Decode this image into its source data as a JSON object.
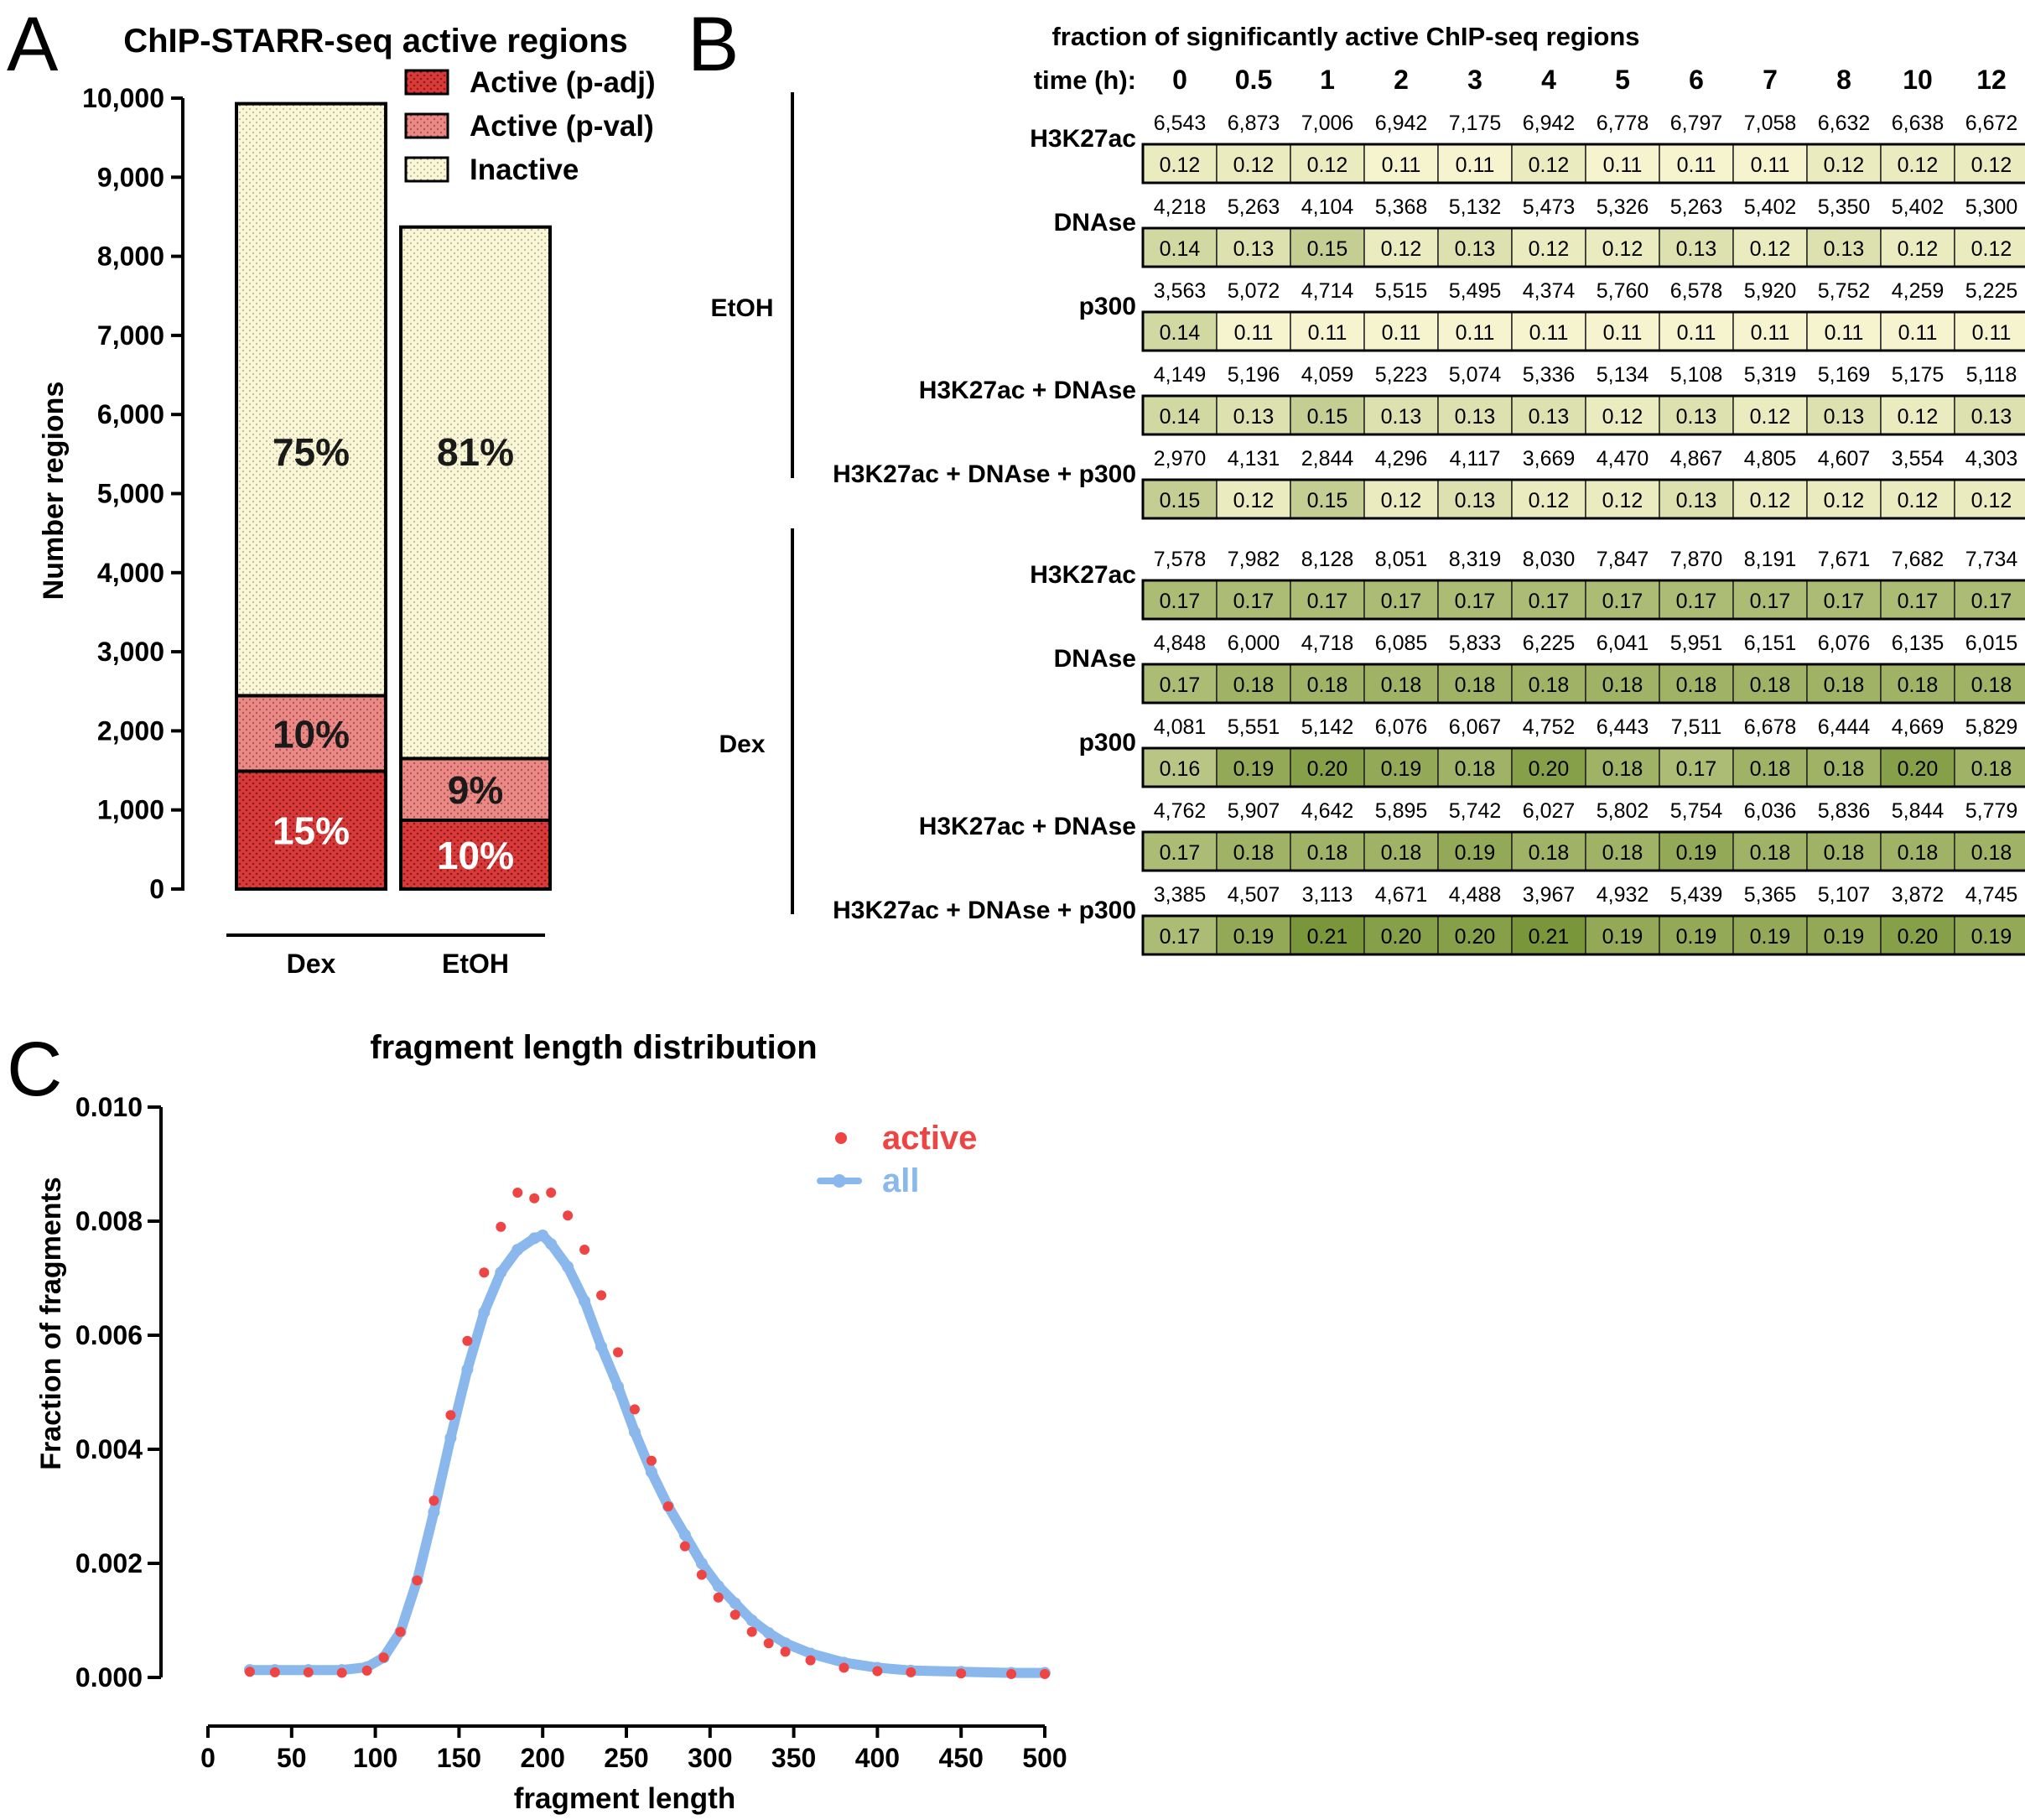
{
  "panel_letters": {
    "a": "A",
    "b": "B",
    "c": "C"
  },
  "chart_data": [
    {
      "type": "bar",
      "stacked": true,
      "title": "ChIP-STARR-seq active regions",
      "xlabel": "",
      "ylabel": "Number regions",
      "ylim": [
        0,
        10000
      ],
      "yticks": [
        "0",
        "1,000",
        "2,000",
        "3,000",
        "4,000",
        "5,000",
        "6,000",
        "7,000",
        "8,000",
        "9,000",
        "10,000"
      ],
      "categories": [
        "Dex",
        "EtOH"
      ],
      "series": [
        {
          "name": "Active (p-adj)",
          "values": [
            1490,
            870
          ],
          "labels": [
            "15%",
            "10%"
          ],
          "color": "#d93a3a"
        },
        {
          "name": "Active (p-val)",
          "values": [
            955,
            780
          ],
          "labels": [
            "10%",
            "9%"
          ],
          "color": "#e98a86"
        },
        {
          "name": "Inactive",
          "values": [
            7485,
            6720
          ],
          "labels": [
            "75%",
            "81%"
          ],
          "color": "#f8f6d6"
        }
      ],
      "legend_position": "top-right"
    },
    {
      "type": "table",
      "title": "fraction of significantly active ChIP-seq regions",
      "time_label": "time (h):",
      "times": [
        "0",
        "0.5",
        "1",
        "2",
        "3",
        "4",
        "5",
        "6",
        "7",
        "8",
        "10",
        "12"
      ],
      "groups": [
        {
          "name": "EtOH",
          "rows": [
            {
              "label": "H3K27ac",
              "counts": [
                "6,543",
                "6,873",
                "7,006",
                "6,942",
                "7,175",
                "6,942",
                "6,778",
                "6,797",
                "7,058",
                "6,632",
                "6,638",
                "6,672"
              ],
              "fractions": [
                "0.12",
                "0.12",
                "0.12",
                "0.11",
                "0.11",
                "0.12",
                "0.11",
                "0.11",
                "0.11",
                "0.12",
                "0.12",
                "0.12"
              ]
            },
            {
              "label": "DNAse",
              "counts": [
                "4,218",
                "5,263",
                "4,104",
                "5,368",
                "5,132",
                "5,473",
                "5,326",
                "5,263",
                "5,402",
                "5,350",
                "5,402",
                "5,300"
              ],
              "fractions": [
                "0.14",
                "0.13",
                "0.15",
                "0.12",
                "0.13",
                "0.12",
                "0.12",
                "0.13",
                "0.12",
                "0.13",
                "0.12",
                "0.12"
              ]
            },
            {
              "label": "p300",
              "counts": [
                "3,563",
                "5,072",
                "4,714",
                "5,515",
                "5,495",
                "4,374",
                "5,760",
                "6,578",
                "5,920",
                "5,752",
                "4,259",
                "5,225"
              ],
              "fractions": [
                "0.14",
                "0.11",
                "0.11",
                "0.11",
                "0.11",
                "0.11",
                "0.11",
                "0.11",
                "0.11",
                "0.11",
                "0.11",
                "0.11"
              ]
            },
            {
              "label": "H3K27ac + DNAse",
              "counts": [
                "4,149",
                "5,196",
                "4,059",
                "5,223",
                "5,074",
                "5,336",
                "5,134",
                "5,108",
                "5,319",
                "5,169",
                "5,175",
                "5,118"
              ],
              "fractions": [
                "0.14",
                "0.13",
                "0.15",
                "0.13",
                "0.13",
                "0.13",
                "0.12",
                "0.13",
                "0.12",
                "0.13",
                "0.12",
                "0.13"
              ]
            },
            {
              "label": "H3K27ac + DNAse + p300",
              "counts": [
                "2,970",
                "4,131",
                "2,844",
                "4,296",
                "4,117",
                "3,669",
                "4,470",
                "4,867",
                "4,805",
                "4,607",
                "3,554",
                "4,303"
              ],
              "fractions": [
                "0.15",
                "0.12",
                "0.15",
                "0.12",
                "0.13",
                "0.12",
                "0.12",
                "0.13",
                "0.12",
                "0.12",
                "0.12",
                "0.12"
              ]
            }
          ]
        },
        {
          "name": "Dex",
          "rows": [
            {
              "label": "H3K27ac",
              "counts": [
                "7,578",
                "7,982",
                "8,128",
                "8,051",
                "8,319",
                "8,030",
                "7,847",
                "7,870",
                "8,191",
                "7,671",
                "7,682",
                "7,734"
              ],
              "fractions": [
                "0.17",
                "0.17",
                "0.17",
                "0.17",
                "0.17",
                "0.17",
                "0.17",
                "0.17",
                "0.17",
                "0.17",
                "0.17",
                "0.17"
              ]
            },
            {
              "label": "DNAse",
              "counts": [
                "4,848",
                "6,000",
                "4,718",
                "6,085",
                "5,833",
                "6,225",
                "6,041",
                "5,951",
                "6,151",
                "6,076",
                "6,135",
                "6,015"
              ],
              "fractions": [
                "0.17",
                "0.18",
                "0.18",
                "0.18",
                "0.18",
                "0.18",
                "0.18",
                "0.18",
                "0.18",
                "0.18",
                "0.18",
                "0.18"
              ]
            },
            {
              "label": "p300",
              "counts": [
                "4,081",
                "5,551",
                "5,142",
                "6,076",
                "6,067",
                "4,752",
                "6,443",
                "7,511",
                "6,678",
                "6,444",
                "4,669",
                "5,829"
              ],
              "fractions": [
                "0.16",
                "0.19",
                "0.20",
                "0.19",
                "0.18",
                "0.20",
                "0.18",
                "0.17",
                "0.18",
                "0.18",
                "0.20",
                "0.18"
              ]
            },
            {
              "label": "H3K27ac + DNAse",
              "counts": [
                "4,762",
                "5,907",
                "4,642",
                "5,895",
                "5,742",
                "6,027",
                "5,802",
                "5,754",
                "6,036",
                "5,836",
                "5,844",
                "5,779"
              ],
              "fractions": [
                "0.17",
                "0.18",
                "0.18",
                "0.18",
                "0.19",
                "0.18",
                "0.18",
                "0.19",
                "0.18",
                "0.18",
                "0.18",
                "0.18"
              ]
            },
            {
              "label": "H3K27ac + DNAse + p300",
              "counts": [
                "3,385",
                "4,507",
                "3,113",
                "4,671",
                "4,488",
                "3,967",
                "4,932",
                "5,439",
                "5,365",
                "5,107",
                "3,872",
                "4,745"
              ],
              "fractions": [
                "0.17",
                "0.19",
                "0.21",
                "0.20",
                "0.20",
                "0.21",
                "0.19",
                "0.19",
                "0.19",
                "0.19",
                "0.20",
                "0.19"
              ]
            }
          ]
        }
      ]
    },
    {
      "type": "scatter",
      "title": "fragment length distribution",
      "xlabel": "fragment length",
      "ylabel": "Fraction of fragments",
      "xlim": [
        0,
        500
      ],
      "ylim": [
        0,
        0.01
      ],
      "xticks": [
        "0",
        "50",
        "100",
        "150",
        "200",
        "250",
        "300",
        "350",
        "400",
        "450",
        "500"
      ],
      "yticks": [
        "0.000",
        "0.002",
        "0.004",
        "0.006",
        "0.008",
        "0.010"
      ],
      "series": [
        {
          "name": "all",
          "color": "#8ab8ec",
          "marker": "line+points",
          "x": [
            25,
            40,
            60,
            80,
            95,
            105,
            115,
            125,
            135,
            145,
            155,
            165,
            175,
            185,
            195,
            200,
            205,
            215,
            225,
            235,
            245,
            255,
            265,
            275,
            285,
            295,
            305,
            315,
            325,
            335,
            345,
            360,
            380,
            400,
            420,
            450,
            480,
            500
          ],
          "y": [
            0.00013,
            0.00013,
            0.00013,
            0.00013,
            0.00018,
            0.00035,
            0.0008,
            0.0017,
            0.0029,
            0.0042,
            0.0054,
            0.0064,
            0.0071,
            0.0075,
            0.0077,
            0.00775,
            0.0076,
            0.0072,
            0.0066,
            0.0058,
            0.0051,
            0.0043,
            0.0036,
            0.003,
            0.0025,
            0.002,
            0.0016,
            0.0013,
            0.001,
            0.00078,
            0.0006,
            0.00042,
            0.00026,
            0.00017,
            0.00012,
            0.0001,
            8e-05,
            8e-05
          ]
        },
        {
          "name": "active",
          "color": "#ee4444",
          "marker": "points",
          "x": [
            25,
            40,
            60,
            80,
            95,
            105,
            115,
            125,
            135,
            145,
            155,
            165,
            175,
            185,
            195,
            205,
            215,
            225,
            235,
            245,
            255,
            265,
            275,
            285,
            295,
            305,
            315,
            325,
            335,
            345,
            360,
            380,
            400,
            420,
            450,
            480,
            500
          ],
          "y": [
            0.0001,
            9e-05,
            9e-05,
            8e-05,
            0.00012,
            0.00035,
            0.0008,
            0.0017,
            0.0031,
            0.0046,
            0.0059,
            0.0071,
            0.0079,
            0.0085,
            0.0084,
            0.0085,
            0.0081,
            0.0075,
            0.0067,
            0.0057,
            0.0047,
            0.0038,
            0.003,
            0.0023,
            0.0018,
            0.0014,
            0.0011,
            0.0008,
            0.0006,
            0.00045,
            0.0003,
            0.00017,
            0.00011,
            9e-05,
            7e-05,
            6e-05,
            6e-05
          ]
        }
      ],
      "legend_position": "top-right"
    }
  ]
}
